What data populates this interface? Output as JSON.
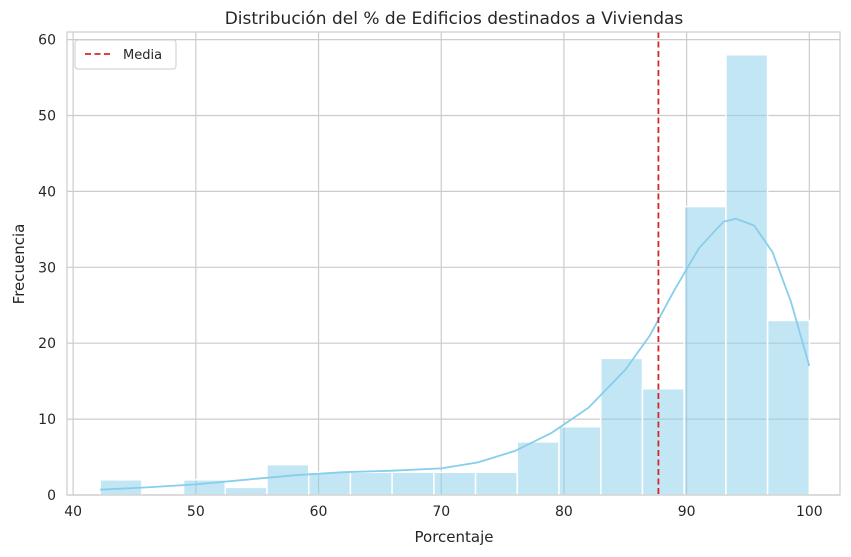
{
  "chart_data": {
    "type": "histogram",
    "title": "Distribución del % de Edificios destinados a Viviendas",
    "xlabel": "Porcentaje",
    "ylabel": "Frecuencia",
    "xlim": [
      39.5,
      102.5
    ],
    "ylim": [
      0,
      61
    ],
    "xticks": [
      40,
      50,
      60,
      70,
      80,
      90,
      100
    ],
    "yticks": [
      0,
      10,
      20,
      30,
      40,
      50,
      60
    ],
    "grid": true,
    "legend_position": "top-left",
    "bins": [
      {
        "start": 42.2,
        "end": 45.6,
        "count": 2
      },
      {
        "start": 45.6,
        "end": 49.0,
        "count": 0
      },
      {
        "start": 49.0,
        "end": 52.4,
        "count": 2
      },
      {
        "start": 52.4,
        "end": 55.8,
        "count": 1
      },
      {
        "start": 55.8,
        "end": 59.2,
        "count": 4
      },
      {
        "start": 59.2,
        "end": 62.6,
        "count": 3
      },
      {
        "start": 62.6,
        "end": 66.0,
        "count": 3
      },
      {
        "start": 66.0,
        "end": 69.4,
        "count": 3
      },
      {
        "start": 69.4,
        "end": 72.8,
        "count": 3
      },
      {
        "start": 72.8,
        "end": 76.2,
        "count": 3
      },
      {
        "start": 76.2,
        "end": 79.6,
        "count": 7
      },
      {
        "start": 79.6,
        "end": 83.0,
        "count": 9
      },
      {
        "start": 83.0,
        "end": 86.4,
        "count": 18
      },
      {
        "start": 86.4,
        "end": 89.8,
        "count": 14
      },
      {
        "start": 89.8,
        "end": 93.2,
        "count": 38
      },
      {
        "start": 93.2,
        "end": 96.6,
        "count": 58
      },
      {
        "start": 96.6,
        "end": 100.0,
        "count": 23
      }
    ],
    "kde": [
      [
        42.2,
        0.7
      ],
      [
        46,
        1.0
      ],
      [
        50,
        1.4
      ],
      [
        54,
        2.0
      ],
      [
        58,
        2.6
      ],
      [
        62,
        3.0
      ],
      [
        66,
        3.2
      ],
      [
        70,
        3.5
      ],
      [
        73,
        4.3
      ],
      [
        76,
        5.8
      ],
      [
        79,
        8.2
      ],
      [
        82,
        11.5
      ],
      [
        85,
        16.5
      ],
      [
        87,
        21.0
      ],
      [
        89,
        27.0
      ],
      [
        91,
        32.5
      ],
      [
        93,
        36.0
      ],
      [
        94,
        36.4
      ],
      [
        95.5,
        35.5
      ],
      [
        97,
        32.0
      ],
      [
        98.5,
        25.5
      ],
      [
        100,
        17.0
      ]
    ],
    "mean_line": {
      "label": "Media",
      "x": 87.7,
      "color": "#d62728",
      "style": "dashed"
    },
    "colors": {
      "bar": "#87ceeb",
      "kde": "#87ceeb",
      "grid": "#cccccc",
      "axes": "#cccccc"
    }
  }
}
